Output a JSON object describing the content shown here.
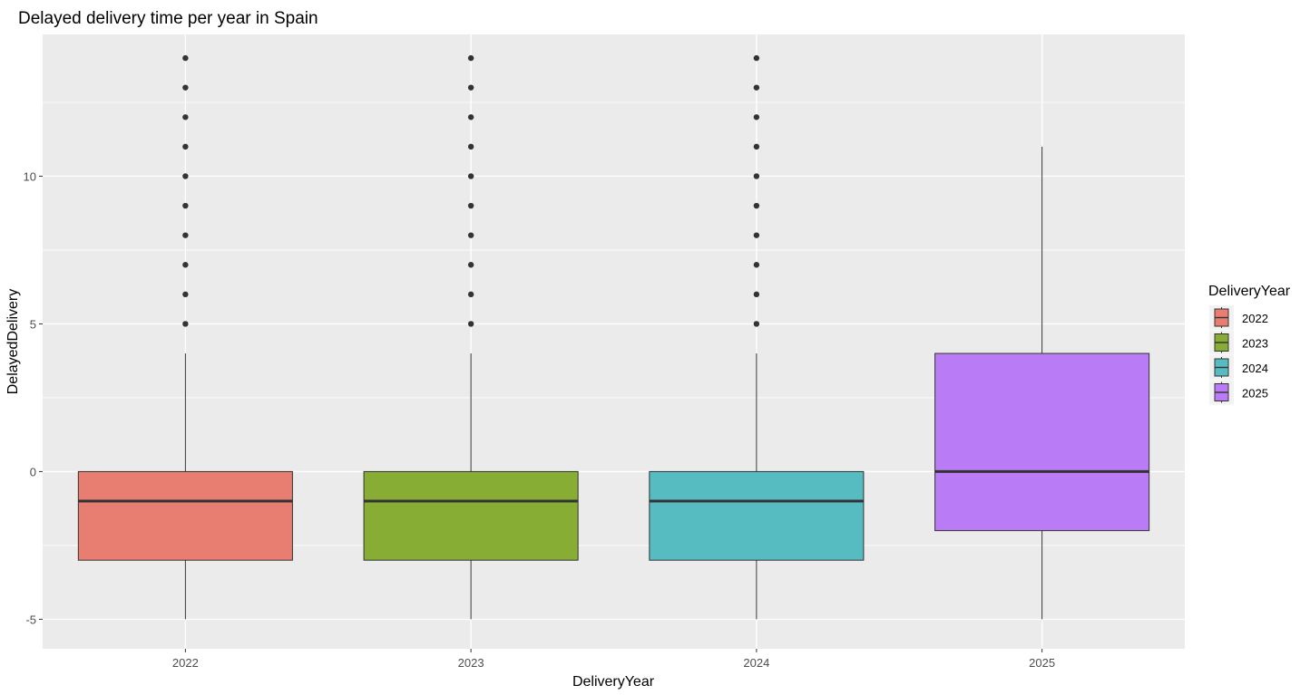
{
  "chart_data": {
    "type": "boxplot",
    "title": "Delayed delivery time per year in Spain",
    "xlabel": "DeliveryYear",
    "ylabel": "DelayedDelivery",
    "ylim": [
      -6,
      14.8
    ],
    "yticks": [
      -5,
      0,
      5,
      10
    ],
    "ytick_labels": [
      "-5",
      "0",
      "5",
      "10"
    ],
    "grid": true,
    "legend": {
      "title": "DeliveryYear",
      "position": "right"
    },
    "series": [
      {
        "name": "2022",
        "color": "#E87D72",
        "whisker_low": -5,
        "q1": -3,
        "median": -1,
        "q3": 0,
        "whisker_high": 4,
        "outliers": [
          5,
          6,
          7,
          8,
          9,
          10,
          11,
          12,
          13,
          14
        ]
      },
      {
        "name": "2023",
        "color": "#88AD35",
        "whisker_low": -5,
        "q1": -3,
        "median": -1,
        "q3": 0,
        "whisker_high": 4,
        "outliers": [
          5,
          6,
          7,
          8,
          9,
          10,
          11,
          12,
          13,
          14
        ]
      },
      {
        "name": "2024",
        "color": "#56BCC2",
        "whisker_low": -5,
        "q1": -3,
        "median": -1,
        "q3": 0,
        "whisker_high": 4,
        "outliers": [
          5,
          6,
          7,
          8,
          9,
          10,
          11,
          12,
          13,
          14
        ]
      },
      {
        "name": "2025",
        "color": "#B97CF6",
        "whisker_low": -5,
        "q1": -2,
        "median": 0,
        "q3": 4,
        "whisker_high": 11,
        "outliers": []
      }
    ],
    "styles": {
      "panel_bg": "#EBEBEB",
      "grid_major": "#FFFFFF",
      "box_stroke": "#333333",
      "outlier_color": "#333333"
    }
  }
}
